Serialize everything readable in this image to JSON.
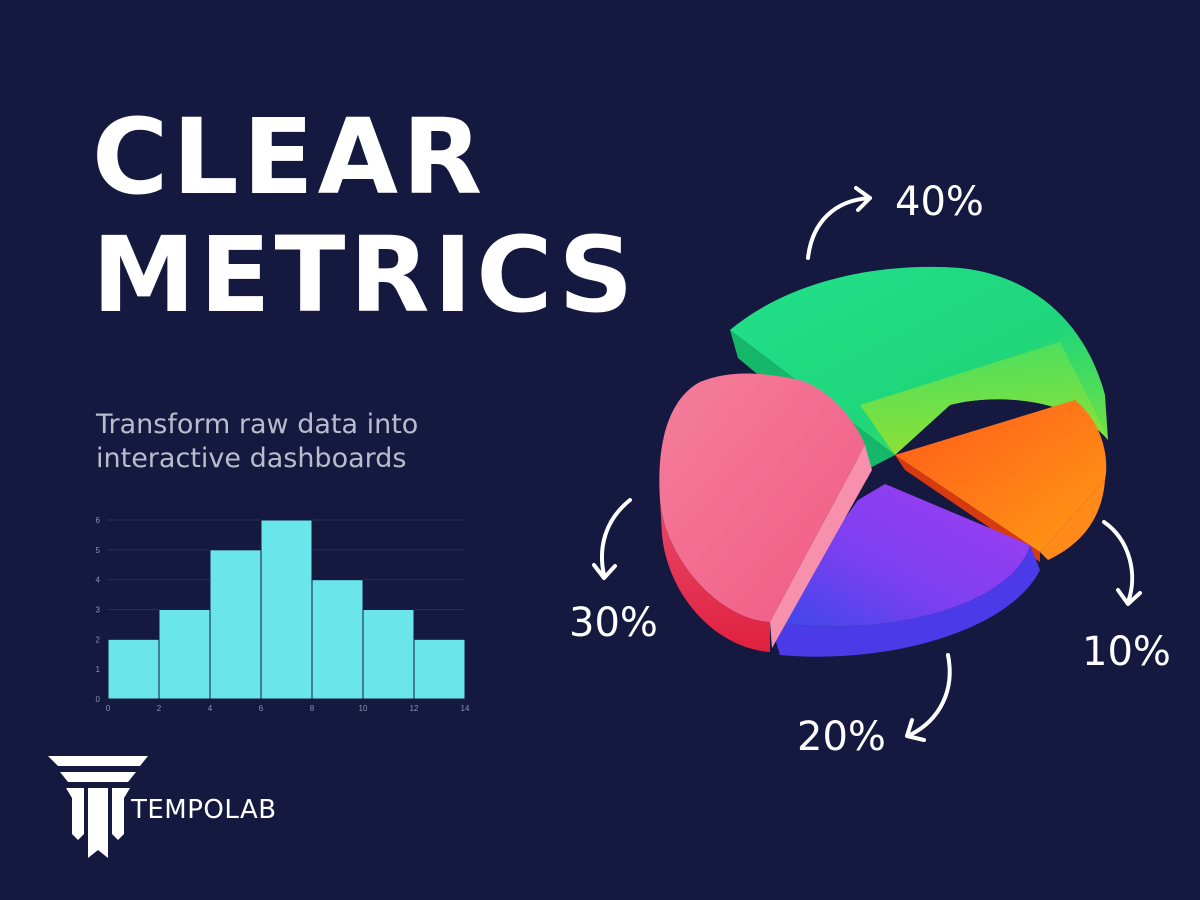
{
  "headline": {
    "line1": "CLEAR",
    "line2": "METRICS"
  },
  "subtitle": {
    "line1": "Transform raw data into",
    "line2": "interactive dashboards"
  },
  "brand": {
    "name": "TEMPOLAB"
  },
  "colors": {
    "background": "#151940",
    "histogram_bar": "#6ae5ea",
    "pie_green": "#1fd67a",
    "pie_orange": "#ff7a14",
    "pie_purple": "#8a3cf0",
    "pie_pink": "#f26a8a"
  },
  "chart_data": [
    {
      "type": "bar",
      "bin_edges": [
        0,
        2,
        4,
        6,
        8,
        10,
        12,
        14
      ],
      "values": [
        2,
        3,
        5,
        6,
        4,
        3,
        2
      ],
      "xticks": [
        0,
        2,
        4,
        6,
        8,
        10,
        12,
        14
      ],
      "yticks": [
        0,
        1,
        2,
        3,
        4,
        5,
        6
      ],
      "xlim": [
        0,
        14
      ],
      "ylim": [
        0,
        6
      ],
      "grid": true
    },
    {
      "type": "pie",
      "slices": [
        {
          "label": "40%",
          "value": 40,
          "color": "#1fd67a"
        },
        {
          "label": "10%",
          "value": 10,
          "color": "#ff7a14"
        },
        {
          "label": "20%",
          "value": 20,
          "color": "#8a3cf0"
        },
        {
          "label": "30%",
          "value": 30,
          "color": "#f26a8a"
        }
      ]
    }
  ]
}
